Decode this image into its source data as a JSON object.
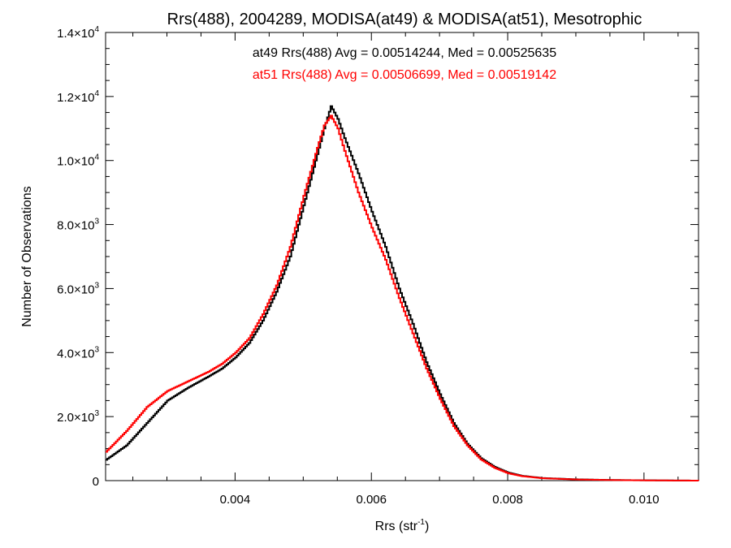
{
  "chart_data": {
    "type": "line",
    "step": true,
    "title": "Rrs(488), 2004289, MODISA(at49) & MODISA(at51), Mesotrophic",
    "xlabel": {
      "base": "Rrs (str",
      "sup": "-1",
      "end": ")"
    },
    "ylabel": "Number of Observations",
    "xlim": [
      0.0021,
      0.0108
    ],
    "ylim": [
      0,
      14000
    ],
    "x_ticks": [
      {
        "value": 0.004,
        "label": "0.004"
      },
      {
        "value": 0.006,
        "label": "0.006"
      },
      {
        "value": 0.008,
        "label": "0.008"
      },
      {
        "value": 0.01,
        "label": "0.010"
      }
    ],
    "y_ticks": [
      {
        "value": 0,
        "mant": "0",
        "exp": ""
      },
      {
        "value": 2000,
        "mant": "2.0×10",
        "exp": "3"
      },
      {
        "value": 4000,
        "mant": "4.0×10",
        "exp": "3"
      },
      {
        "value": 6000,
        "mant": "6.0×10",
        "exp": "3"
      },
      {
        "value": 8000,
        "mant": "8.0×10",
        "exp": "3"
      },
      {
        "value": 10000,
        "mant": "1.0×10",
        "exp": "4"
      },
      {
        "value": 12000,
        "mant": "1.2×10",
        "exp": "4"
      },
      {
        "value": 14000,
        "mant": "1.4×10",
        "exp": "4"
      }
    ],
    "annotations": [
      {
        "text": "at49 Rrs(488) Avg = 0.00514244, Med = 0.00525635",
        "color": "#000000"
      },
      {
        "text": "at51 Rrs(488) Avg = 0.00506699, Med = 0.00519142",
        "color": "#ff0000"
      }
    ],
    "series": [
      {
        "color": "#000000",
        "x": [
          0.0021,
          0.0024,
          0.0027,
          0.003,
          0.0033,
          0.0036,
          0.0038,
          0.004,
          0.0042,
          0.0044,
          0.0046,
          0.0048,
          0.005,
          0.0052,
          0.0053,
          0.0054,
          0.0055,
          0.0056,
          0.0058,
          0.006,
          0.0062,
          0.0064,
          0.0066,
          0.0068,
          0.007,
          0.0072,
          0.0074,
          0.0076,
          0.0078,
          0.008,
          0.0082,
          0.0085,
          0.009,
          0.0095,
          0.01,
          0.0108
        ],
        "y": [
          650,
          1100,
          1800,
          2500,
          2900,
          3250,
          3500,
          3850,
          4300,
          5000,
          5900,
          7000,
          8600,
          10200,
          11000,
          11700,
          11300,
          10700,
          9600,
          8400,
          7300,
          6000,
          4900,
          3700,
          2700,
          1800,
          1150,
          700,
          430,
          250,
          150,
          80,
          40,
          20,
          10,
          0
        ]
      },
      {
        "color": "#ff0000",
        "x": [
          0.0021,
          0.0024,
          0.0027,
          0.003,
          0.0033,
          0.0036,
          0.0038,
          0.004,
          0.0042,
          0.0044,
          0.0046,
          0.0048,
          0.005,
          0.0052,
          0.0053,
          0.0054,
          0.0055,
          0.0056,
          0.0058,
          0.006,
          0.0062,
          0.0064,
          0.0066,
          0.0068,
          0.007,
          0.0072,
          0.0074,
          0.0076,
          0.0078,
          0.008,
          0.0082,
          0.0085,
          0.009,
          0.0095,
          0.01,
          0.0108
        ],
        "y": [
          900,
          1550,
          2300,
          2800,
          3100,
          3400,
          3650,
          4000,
          4450,
          5200,
          6100,
          7300,
          8900,
          10400,
          11100,
          11400,
          11000,
          10300,
          9000,
          7900,
          6900,
          5700,
          4600,
          3500,
          2550,
          1700,
          1100,
          660,
          400,
          230,
          140,
          75,
          35,
          18,
          8,
          0
        ]
      }
    ]
  }
}
